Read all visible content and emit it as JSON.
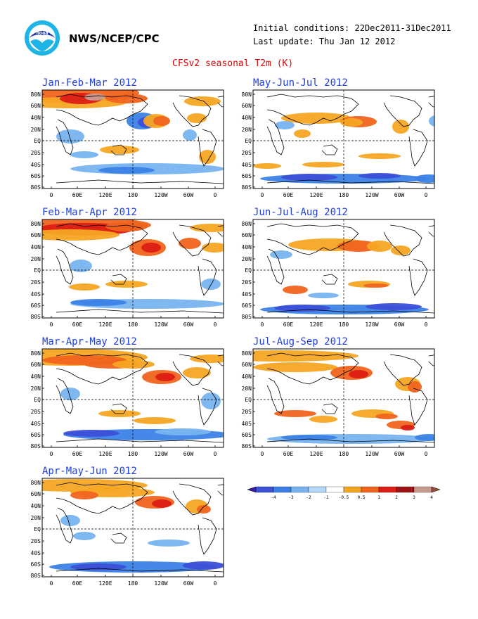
{
  "header": {
    "org": "NWS/NCEP/CPC",
    "initial_conditions": "Initial conditions: 22Dec2011-31Dec2011",
    "last_update": "Last update: Thu Jan 12 2012",
    "title": "CFSv2 seasonal T2m (K)",
    "logo_icon": "noaa-logo-icon"
  },
  "lat_labels": [
    "80N",
    "60N",
    "40N",
    "20N",
    "EQ",
    "20S",
    "40S",
    "60S",
    "80S"
  ],
  "lon_labels": [
    "0",
    "60E",
    "120E",
    "180",
    "120W",
    "60W",
    "0"
  ],
  "panels": [
    {
      "id": "jfm",
      "title": "Jan-Feb-Mar 2012"
    },
    {
      "id": "mjj",
      "title": "May-Jun-Jul 2012"
    },
    {
      "id": "fma",
      "title": "Feb-Mar-Apr 2012"
    },
    {
      "id": "jja",
      "title": "Jun-Jul-Aug 2012"
    },
    {
      "id": "mam",
      "title": "Mar-Apr-May 2012"
    },
    {
      "id": "jas",
      "title": "Jul-Aug-Sep 2012"
    },
    {
      "id": "amj",
      "title": "Apr-May-Jun 2012"
    }
  ],
  "legend": {
    "labels": [
      "-4",
      "-3",
      "-2",
      "-1",
      "-0.5",
      "0.5",
      "1",
      "2",
      "3",
      "4"
    ],
    "colors": [
      "#3a1fa0",
      "#3c50d8",
      "#3c82e6",
      "#78b4f0",
      "#b4d7fa",
      "#ffffff",
      "#f5a623",
      "#f0641e",
      "#dc1e14",
      "#a01414",
      "#c89b91",
      "#96503c"
    ]
  },
  "colors": {
    "title_blue": "#2040e0",
    "title_red": "#e00000",
    "warm_light": "#f5a623",
    "warm_mid": "#f0641e",
    "warm_strong": "#dc1e14",
    "warm_dark": "#a01414",
    "warm_extreme": "#c89b91",
    "cool_light": "#78b4f0",
    "cool_mid": "#3c82e6",
    "cool_strong": "#3c50d8"
  }
}
